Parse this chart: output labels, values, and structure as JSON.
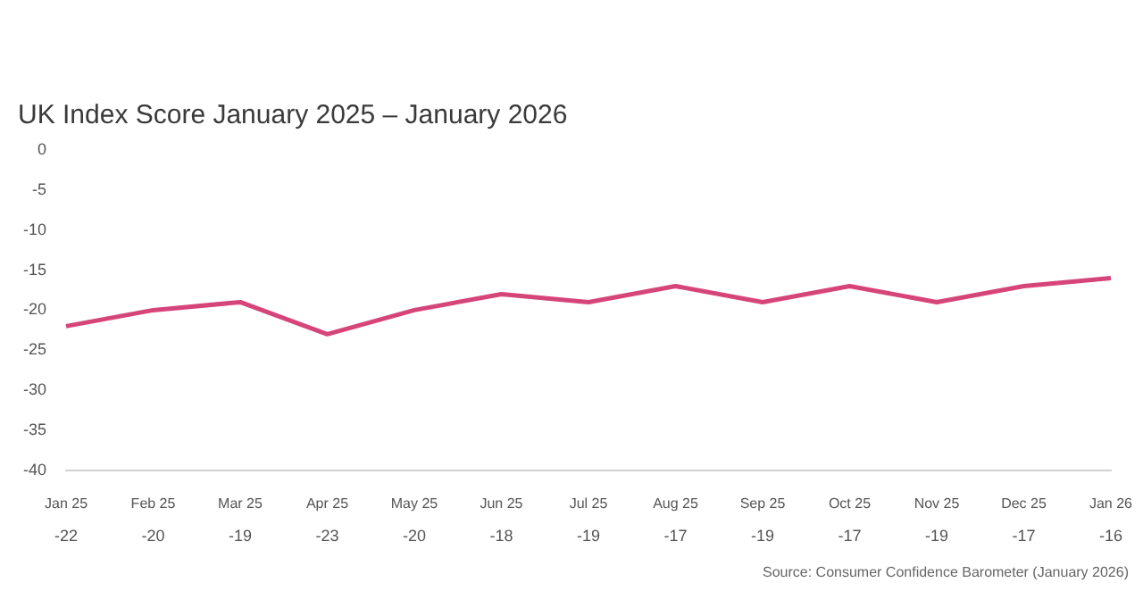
{
  "chart_data": {
    "type": "line",
    "title": "UK Index Score January 2025 – January 2026",
    "categories": [
      "Jan 25",
      "Feb 25",
      "Mar 25",
      "Apr 25",
      "May 25",
      "Jun 25",
      "Jul 25",
      "Aug 25",
      "Sep 25",
      "Oct 25",
      "Nov 25",
      "Dec 25",
      "Jan 26"
    ],
    "series": [
      {
        "color": "#d6457a",
        "values": [
          -22,
          -20,
          -19,
          -23,
          -20,
          -18,
          -19,
          -17,
          -19,
          -17,
          -19,
          -17,
          -16
        ]
      }
    ],
    "ylim": [
      -40,
      0
    ],
    "yticks": [
      -40,
      -35,
      -30,
      -25,
      -20,
      -15,
      -10,
      -5,
      0
    ],
    "grid": false,
    "legend": false,
    "marker": "none",
    "line_style": "solid",
    "data_labels": true,
    "annotations": [
      "Source: Consumer Confidence Barometer (January 2026)"
    ]
  }
}
